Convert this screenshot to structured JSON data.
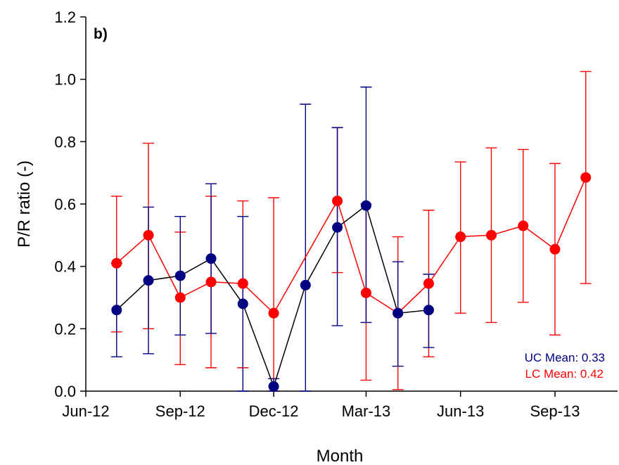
{
  "chart_data": {
    "type": "scatter",
    "panel_label": "b)",
    "xlabel": "Month",
    "ylabel": "P/R ratio (-)",
    "ylim": [
      0,
      1.2
    ],
    "yticks": [
      0.0,
      0.2,
      0.4,
      0.6,
      0.8,
      1.0,
      1.2
    ],
    "ytick_labels": [
      "0.0",
      "0.2",
      "0.4",
      "0.6",
      "0.8",
      "1.0",
      "1.2"
    ],
    "xlim": [
      "2012-06-01",
      "2013-11-01"
    ],
    "xticks": [
      "2012-06-01",
      "2012-09-01",
      "2012-12-01",
      "2013-03-01",
      "2013-06-01",
      "2013-09-01"
    ],
    "xtick_labels": [
      "Jun-12",
      "Sep-12",
      "Dec-12",
      "Mar-13",
      "Jun-13",
      "Sep-13"
    ],
    "colors": {
      "UC": "#000080",
      "LC": "#ff0000",
      "UC_line": "#000000",
      "LC_line": "#ff0000"
    },
    "annotations": [
      {
        "text": "UC Mean: 0.33",
        "color": "#000080"
      },
      {
        "text": "LC Mean: 0.42",
        "color": "#ff0000"
      }
    ],
    "series": [
      {
        "name": "UC",
        "x": [
          "2012-07-01",
          "2012-08-01",
          "2012-09-01",
          "2012-10-01",
          "2012-11-01",
          "2012-12-01",
          "2013-01-01",
          "2013-02-01",
          "2013-03-01",
          "2013-04-01",
          "2013-05-01"
        ],
        "y": [
          0.26,
          0.355,
          0.37,
          0.425,
          0.28,
          0.015,
          0.34,
          0.525,
          0.595,
          0.25,
          0.26
        ],
        "err_low": [
          0.11,
          0.12,
          0.18,
          0.185,
          0.0,
          0.0,
          0.0,
          0.21,
          0.22,
          0.08,
          0.14
        ],
        "err_high": [
          0.41,
          0.59,
          0.56,
          0.665,
          0.56,
          0.04,
          0.92,
          0.845,
          0.975,
          0.415,
          0.375
        ]
      },
      {
        "name": "LC",
        "x": [
          "2012-07-01",
          "2012-08-01",
          "2012-09-01",
          "2012-10-01",
          "2012-11-01",
          "2012-12-01",
          "2013-02-01",
          "2013-03-01",
          "2013-04-01",
          "2013-05-01",
          "2013-06-01",
          "2013-07-01",
          "2013-08-01",
          "2013-09-01",
          "2013-10-01"
        ],
        "y": [
          0.41,
          0.5,
          0.3,
          0.35,
          0.345,
          0.25,
          0.61,
          0.315,
          0.25,
          0.345,
          0.495,
          0.5,
          0.53,
          0.455,
          0.685
        ],
        "err_low": [
          0.19,
          0.2,
          0.085,
          0.075,
          0.075,
          0.0,
          0.38,
          0.035,
          0.005,
          0.11,
          0.25,
          0.22,
          0.285,
          0.18,
          0.345
        ],
        "err_high": [
          0.625,
          0.795,
          0.51,
          0.625,
          0.61,
          0.62,
          0.845,
          0.6,
          0.495,
          0.58,
          0.735,
          0.78,
          0.775,
          0.73,
          1.025
        ]
      }
    ]
  }
}
